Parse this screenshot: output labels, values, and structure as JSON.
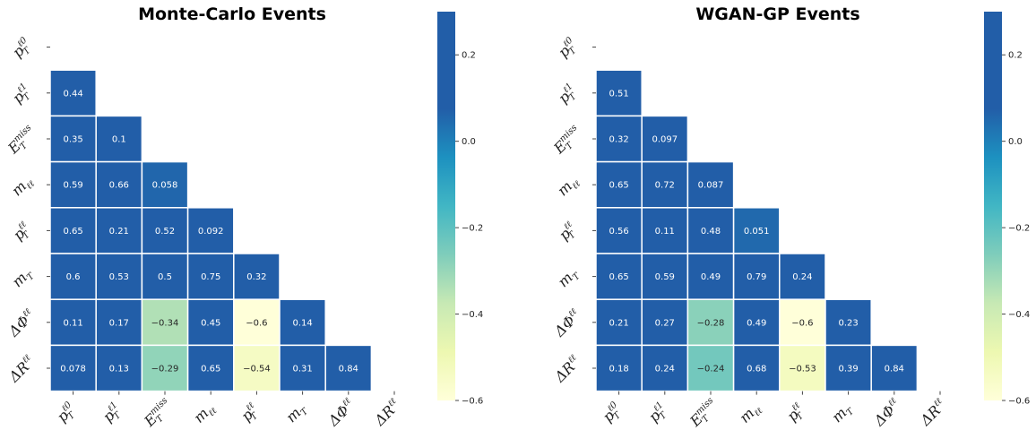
{
  "chart_data": [
    {
      "type": "heatmap",
      "title": "Monte-Carlo Events",
      "variables": [
        {
          "base": "p",
          "sub": "T",
          "sup": "ℓ0"
        },
        {
          "base": "p",
          "sub": "T",
          "sup": "ℓ1"
        },
        {
          "base": "E",
          "sub": "T",
          "sup": "miss"
        },
        {
          "base": "m",
          "sub": "ℓℓ",
          "sup": ""
        },
        {
          "base": "p",
          "sub": "T",
          "sup": "ℓℓ"
        },
        {
          "base": "m",
          "sub": "T",
          "sup": ""
        },
        {
          "base": "ΔΦ",
          "sub": "",
          "sup": "ℓℓ"
        },
        {
          "base": "ΔR",
          "sub": "",
          "sup": "ℓℓ"
        }
      ],
      "matrix_lower": [
        [],
        [
          0.44
        ],
        [
          0.35,
          0.1
        ],
        [
          0.59,
          0.66,
          0.058
        ],
        [
          0.65,
          0.21,
          0.52,
          0.092
        ],
        [
          0.6,
          0.53,
          0.5,
          0.75,
          0.32
        ],
        [
          0.11,
          0.17,
          -0.34,
          0.45,
          -0.6,
          0.14
        ],
        [
          0.078,
          0.13,
          -0.29,
          0.65,
          -0.54,
          0.31,
          0.84
        ]
      ],
      "colorbar": {
        "vmin": -0.6,
        "vmax": 0.3,
        "ticks": [
          0.2,
          0.0,
          -0.2,
          -0.4,
          -0.6
        ],
        "tick_labels": [
          "0.2",
          "0.0",
          "−0.2",
          "−0.4",
          "−0.6"
        ],
        "colormap": "YlGnBu"
      }
    },
    {
      "type": "heatmap",
      "title": "WGAN-GP Events",
      "variables": [
        {
          "base": "p",
          "sub": "T",
          "sup": "ℓ0"
        },
        {
          "base": "p",
          "sub": "T",
          "sup": "ℓ1"
        },
        {
          "base": "E",
          "sub": "T",
          "sup": "miss"
        },
        {
          "base": "m",
          "sub": "ℓℓ",
          "sup": ""
        },
        {
          "base": "p",
          "sub": "T",
          "sup": "ℓℓ"
        },
        {
          "base": "m",
          "sub": "T",
          "sup": ""
        },
        {
          "base": "ΔΦ",
          "sub": "",
          "sup": "ℓℓ"
        },
        {
          "base": "ΔR",
          "sub": "",
          "sup": "ℓℓ"
        }
      ],
      "matrix_lower": [
        [],
        [
          0.51
        ],
        [
          0.32,
          0.097
        ],
        [
          0.65,
          0.72,
          0.087
        ],
        [
          0.56,
          0.11,
          0.48,
          0.051
        ],
        [
          0.65,
          0.59,
          0.49,
          0.79,
          0.24
        ],
        [
          0.21,
          0.27,
          -0.28,
          0.49,
          -0.6,
          0.23
        ],
        [
          0.18,
          0.24,
          -0.24,
          0.68,
          -0.53,
          0.39,
          0.84
        ]
      ],
      "colorbar": {
        "vmin": -0.6,
        "vmax": 0.3,
        "ticks": [
          0.2,
          0.0,
          -0.2,
          -0.4,
          -0.6
        ],
        "tick_labels": [
          "0.2",
          "0.0",
          "−0.2",
          "−0.4",
          "−0.6"
        ],
        "colormap": "YlGnBu"
      }
    }
  ]
}
